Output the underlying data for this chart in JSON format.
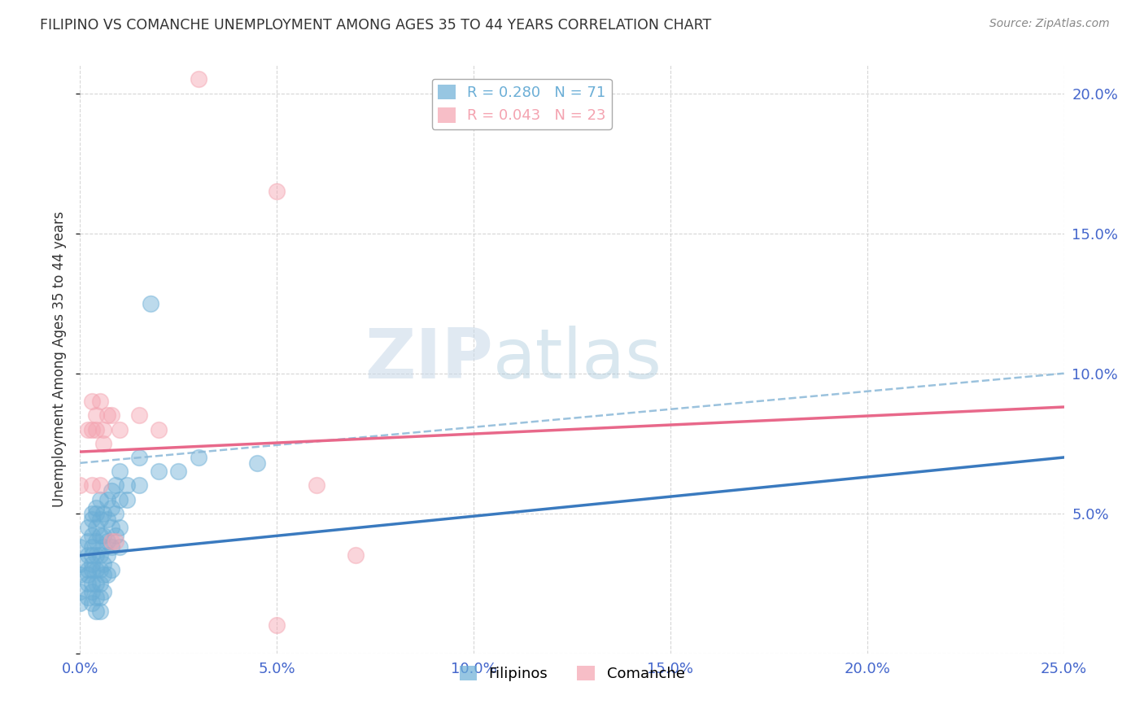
{
  "title": "FILIPINO VS COMANCHE UNEMPLOYMENT AMONG AGES 35 TO 44 YEARS CORRELATION CHART",
  "source": "Source: ZipAtlas.com",
  "ylabel": "Unemployment Among Ages 35 to 44 years",
  "xlim": [
    0.0,
    0.25
  ],
  "ylim": [
    0.0,
    0.21
  ],
  "xticks": [
    0.0,
    0.05,
    0.1,
    0.15,
    0.2,
    0.25
  ],
  "yticks": [
    0.0,
    0.05,
    0.1,
    0.15,
    0.2
  ],
  "ytick_labels_right": [
    "",
    "5.0%",
    "10.0%",
    "15.0%",
    "20.0%"
  ],
  "xtick_labels": [
    "0.0%",
    "5.0%",
    "10.0%",
    "15.0%",
    "20.0%",
    "25.0%"
  ],
  "filipino_color": "#6baed6",
  "comanche_color": "#f4a3b0",
  "filipino_R": 0.28,
  "filipino_N": 71,
  "comanche_R": 0.043,
  "comanche_N": 23,
  "watermark_zip": "ZIP",
  "watermark_atlas": "atlas",
  "filipino_scatter": [
    [
      0.0,
      0.038
    ],
    [
      0.0,
      0.028
    ],
    [
      0.0,
      0.022
    ],
    [
      0.0,
      0.032
    ],
    [
      0.0,
      0.018
    ],
    [
      0.002,
      0.04
    ],
    [
      0.002,
      0.035
    ],
    [
      0.002,
      0.028
    ],
    [
      0.002,
      0.045
    ],
    [
      0.002,
      0.03
    ],
    [
      0.002,
      0.025
    ],
    [
      0.002,
      0.02
    ],
    [
      0.003,
      0.042
    ],
    [
      0.003,
      0.038
    ],
    [
      0.003,
      0.032
    ],
    [
      0.003,
      0.048
    ],
    [
      0.003,
      0.05
    ],
    [
      0.003,
      0.035
    ],
    [
      0.003,
      0.03
    ],
    [
      0.003,
      0.025
    ],
    [
      0.003,
      0.022
    ],
    [
      0.003,
      0.018
    ],
    [
      0.004,
      0.045
    ],
    [
      0.004,
      0.04
    ],
    [
      0.004,
      0.035
    ],
    [
      0.004,
      0.05
    ],
    [
      0.004,
      0.052
    ],
    [
      0.004,
      0.03
    ],
    [
      0.004,
      0.025
    ],
    [
      0.004,
      0.02
    ],
    [
      0.004,
      0.015
    ],
    [
      0.005,
      0.055
    ],
    [
      0.005,
      0.048
    ],
    [
      0.005,
      0.042
    ],
    [
      0.005,
      0.035
    ],
    [
      0.005,
      0.03
    ],
    [
      0.005,
      0.025
    ],
    [
      0.005,
      0.02
    ],
    [
      0.005,
      0.015
    ],
    [
      0.006,
      0.05
    ],
    [
      0.006,
      0.042
    ],
    [
      0.006,
      0.038
    ],
    [
      0.006,
      0.032
    ],
    [
      0.006,
      0.028
    ],
    [
      0.006,
      0.022
    ],
    [
      0.007,
      0.055
    ],
    [
      0.007,
      0.048
    ],
    [
      0.007,
      0.04
    ],
    [
      0.007,
      0.035
    ],
    [
      0.007,
      0.028
    ],
    [
      0.008,
      0.058
    ],
    [
      0.008,
      0.052
    ],
    [
      0.008,
      0.045
    ],
    [
      0.008,
      0.038
    ],
    [
      0.008,
      0.03
    ],
    [
      0.009,
      0.06
    ],
    [
      0.009,
      0.05
    ],
    [
      0.009,
      0.042
    ],
    [
      0.01,
      0.065
    ],
    [
      0.01,
      0.055
    ],
    [
      0.01,
      0.045
    ],
    [
      0.01,
      0.038
    ],
    [
      0.012,
      0.06
    ],
    [
      0.012,
      0.055
    ],
    [
      0.015,
      0.07
    ],
    [
      0.015,
      0.06
    ],
    [
      0.018,
      0.125
    ],
    [
      0.02,
      0.065
    ],
    [
      0.025,
      0.065
    ],
    [
      0.03,
      0.07
    ],
    [
      0.045,
      0.068
    ]
  ],
  "comanche_scatter": [
    [
      0.0,
      0.06
    ],
    [
      0.002,
      0.08
    ],
    [
      0.003,
      0.08
    ],
    [
      0.003,
      0.06
    ],
    [
      0.003,
      0.09
    ],
    [
      0.004,
      0.08
    ],
    [
      0.004,
      0.085
    ],
    [
      0.005,
      0.09
    ],
    [
      0.005,
      0.06
    ],
    [
      0.006,
      0.08
    ],
    [
      0.006,
      0.075
    ],
    [
      0.007,
      0.085
    ],
    [
      0.008,
      0.085
    ],
    [
      0.008,
      0.04
    ],
    [
      0.009,
      0.04
    ],
    [
      0.01,
      0.08
    ],
    [
      0.015,
      0.085
    ],
    [
      0.02,
      0.08
    ],
    [
      0.03,
      0.205
    ],
    [
      0.05,
      0.165
    ],
    [
      0.06,
      0.06
    ],
    [
      0.07,
      0.035
    ],
    [
      0.05,
      0.01
    ]
  ],
  "filipino_trend_x": [
    0.0,
    0.25
  ],
  "filipino_trend_y": [
    0.035,
    0.07
  ],
  "filipino_dashed_trend_x": [
    0.0,
    0.25
  ],
  "filipino_dashed_trend_y": [
    0.068,
    0.1
  ],
  "comanche_trend_x": [
    0.0,
    0.25
  ],
  "comanche_trend_y": [
    0.072,
    0.088
  ],
  "bg_color": "#ffffff",
  "grid_color": "#cccccc",
  "title_color": "#333333",
  "axis_label_color": "#333333",
  "tick_label_color": "#4466cc"
}
